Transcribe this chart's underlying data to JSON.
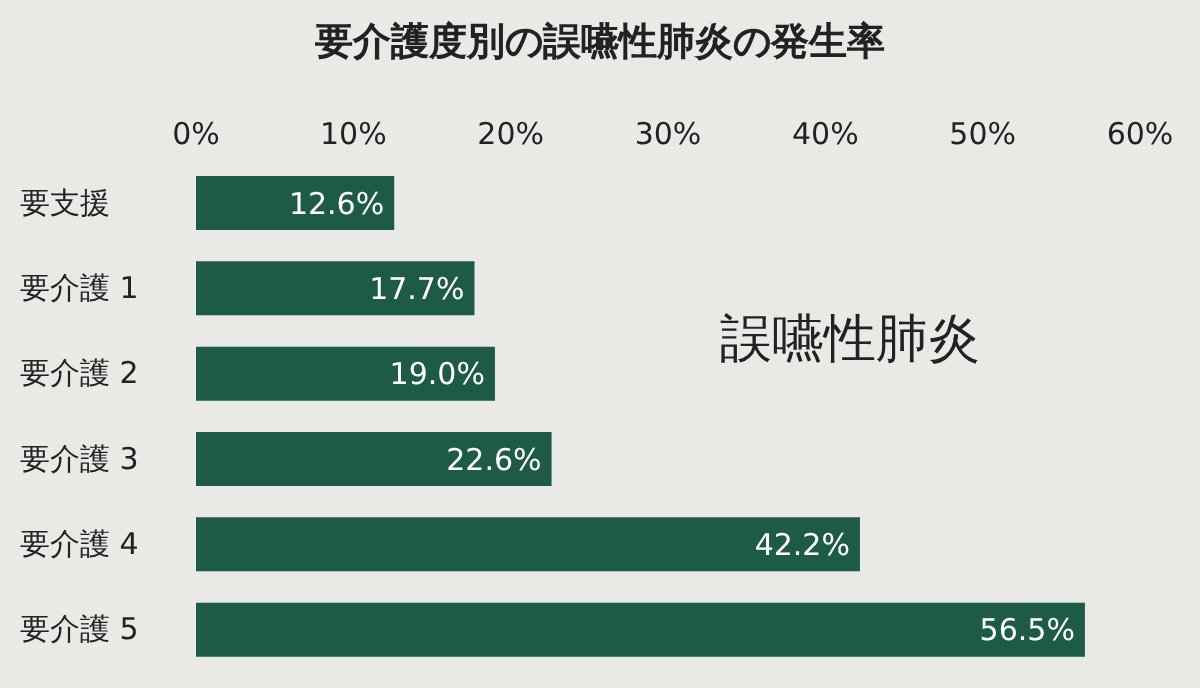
{
  "chart_data": {
    "type": "bar",
    "orientation": "horizontal",
    "title": "要介護度別の誤嚥性肺炎の発生率",
    "categories": [
      "要支援",
      "要介護 1",
      "要介護 2",
      "要介護 3",
      "要介護 4",
      "要介護 5"
    ],
    "values": [
      12.6,
      17.7,
      19.0,
      22.6,
      42.2,
      56.5
    ],
    "value_labels": [
      "12.6%",
      "17.7%",
      "19.0%",
      "22.6%",
      "42.2%",
      "56.5%"
    ],
    "color": "#1d5a47",
    "xlim": [
      0,
      60
    ],
    "xticks": [
      {
        "value": 0,
        "label": "0%"
      },
      {
        "value": 10,
        "label": "10%"
      },
      {
        "value": 20,
        "label": "20%"
      },
      {
        "value": 30,
        "label": "30%"
      },
      {
        "value": 40,
        "label": "40%"
      },
      {
        "value": 50,
        "label": "50%"
      },
      {
        "value": 60,
        "label": "60%"
      }
    ],
    "annotations": [
      "誤嚥性肺炎"
    ]
  }
}
